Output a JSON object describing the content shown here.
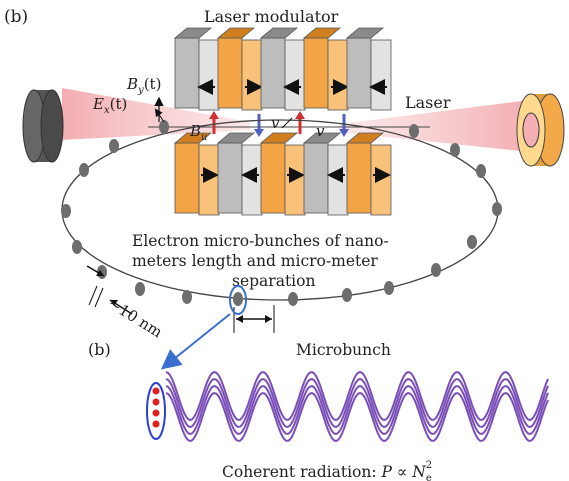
{
  "labels": {
    "panel_top": "(b)",
    "panel_bottom": "(b)",
    "title": "Laser modulator",
    "laser": "Laser",
    "by": "B",
    "by_sub": "y",
    "by_arg": "(t)",
    "ex": "E",
    "ex_sub": "x",
    "ex_arg": "(t)",
    "bu": "B",
    "bu_sub": "u",
    "v1": "v",
    "v2": "v",
    "caption_line1": "Electron micro-bunches of nano-",
    "caption_line2": "meters length and micro-meter",
    "caption_line3": "separation",
    "size": "~10 nm",
    "microbunch": "Microbunch",
    "coherent_prefix": "Coherent radiation: ",
    "coherent_p": "P",
    "coherent_prop": " ∝ ",
    "coherent_n": "N",
    "coherent_sub": "e",
    "coherent_sup": "2"
  },
  "colors": {
    "magnet_gray": "#a9a9a9",
    "magnet_orange": "#f0a040",
    "laser_pink": "#f4b8bc",
    "bunch_gray": "#6d6d6d",
    "wave_purple": "#7b4fb8",
    "electron_red": "#e02020",
    "circle_blue": "#3060d0"
  }
}
